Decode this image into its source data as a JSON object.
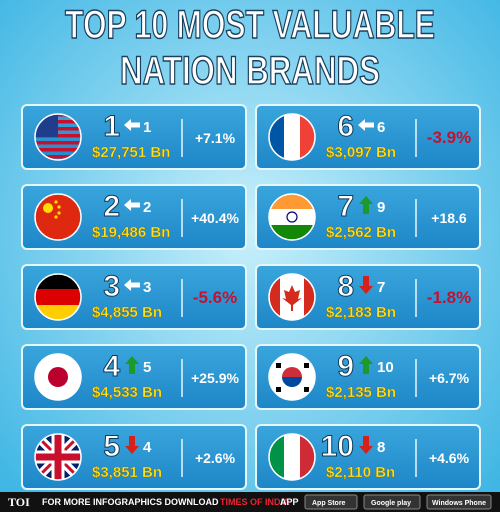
{
  "header": {
    "title_lines": [
      "TOP 10 MOST VALUABLE",
      "NATION BRANDS"
    ]
  },
  "items": [
    {
      "rank": "1",
      "prev_rank": "1",
      "value": "$27,751 Bn",
      "change": "+7.1%"
    },
    {
      "rank": "2",
      "prev_rank": "2",
      "value": "$19,486 Bn",
      "change": "+40.4%"
    },
    {
      "rank": "3",
      "prev_rank": "3",
      "value": "$4,855 Bn",
      "change": "-5.6%"
    },
    {
      "rank": "4",
      "prev_rank": "5",
      "value": "$4,533 Bn",
      "change": "+25.9%"
    },
    {
      "rank": "5",
      "prev_rank": "4",
      "value": "$3,851 Bn",
      "change": "+2.6%"
    },
    {
      "rank": "6",
      "prev_rank": "6",
      "value": "$3,097 Bn",
      "change": "-3.9%"
    },
    {
      "rank": "7",
      "prev_rank": "9",
      "value": "$2,562 Bn",
      "change": "+18.6"
    },
    {
      "rank": "8",
      "prev_rank": "7",
      "value": "$2,183 Bn",
      "change": "-1.8%"
    },
    {
      "rank": "9",
      "prev_rank": "10",
      "value": "$2,135 Bn",
      "change": "+6.7%"
    },
    {
      "rank": "10",
      "prev_rank": "8",
      "value": "$2,110 Bn",
      "change": "+4.6%"
    }
  ],
  "footer": {
    "logo": "TOI",
    "text": "FOR MORE  INFOGRAPHICS DOWNLOAD",
    "brand": "TIMES OF INDIA",
    "suffix": "APP",
    "badges": [
      "App Store",
      "Google play",
      "Windows Phone"
    ]
  }
}
